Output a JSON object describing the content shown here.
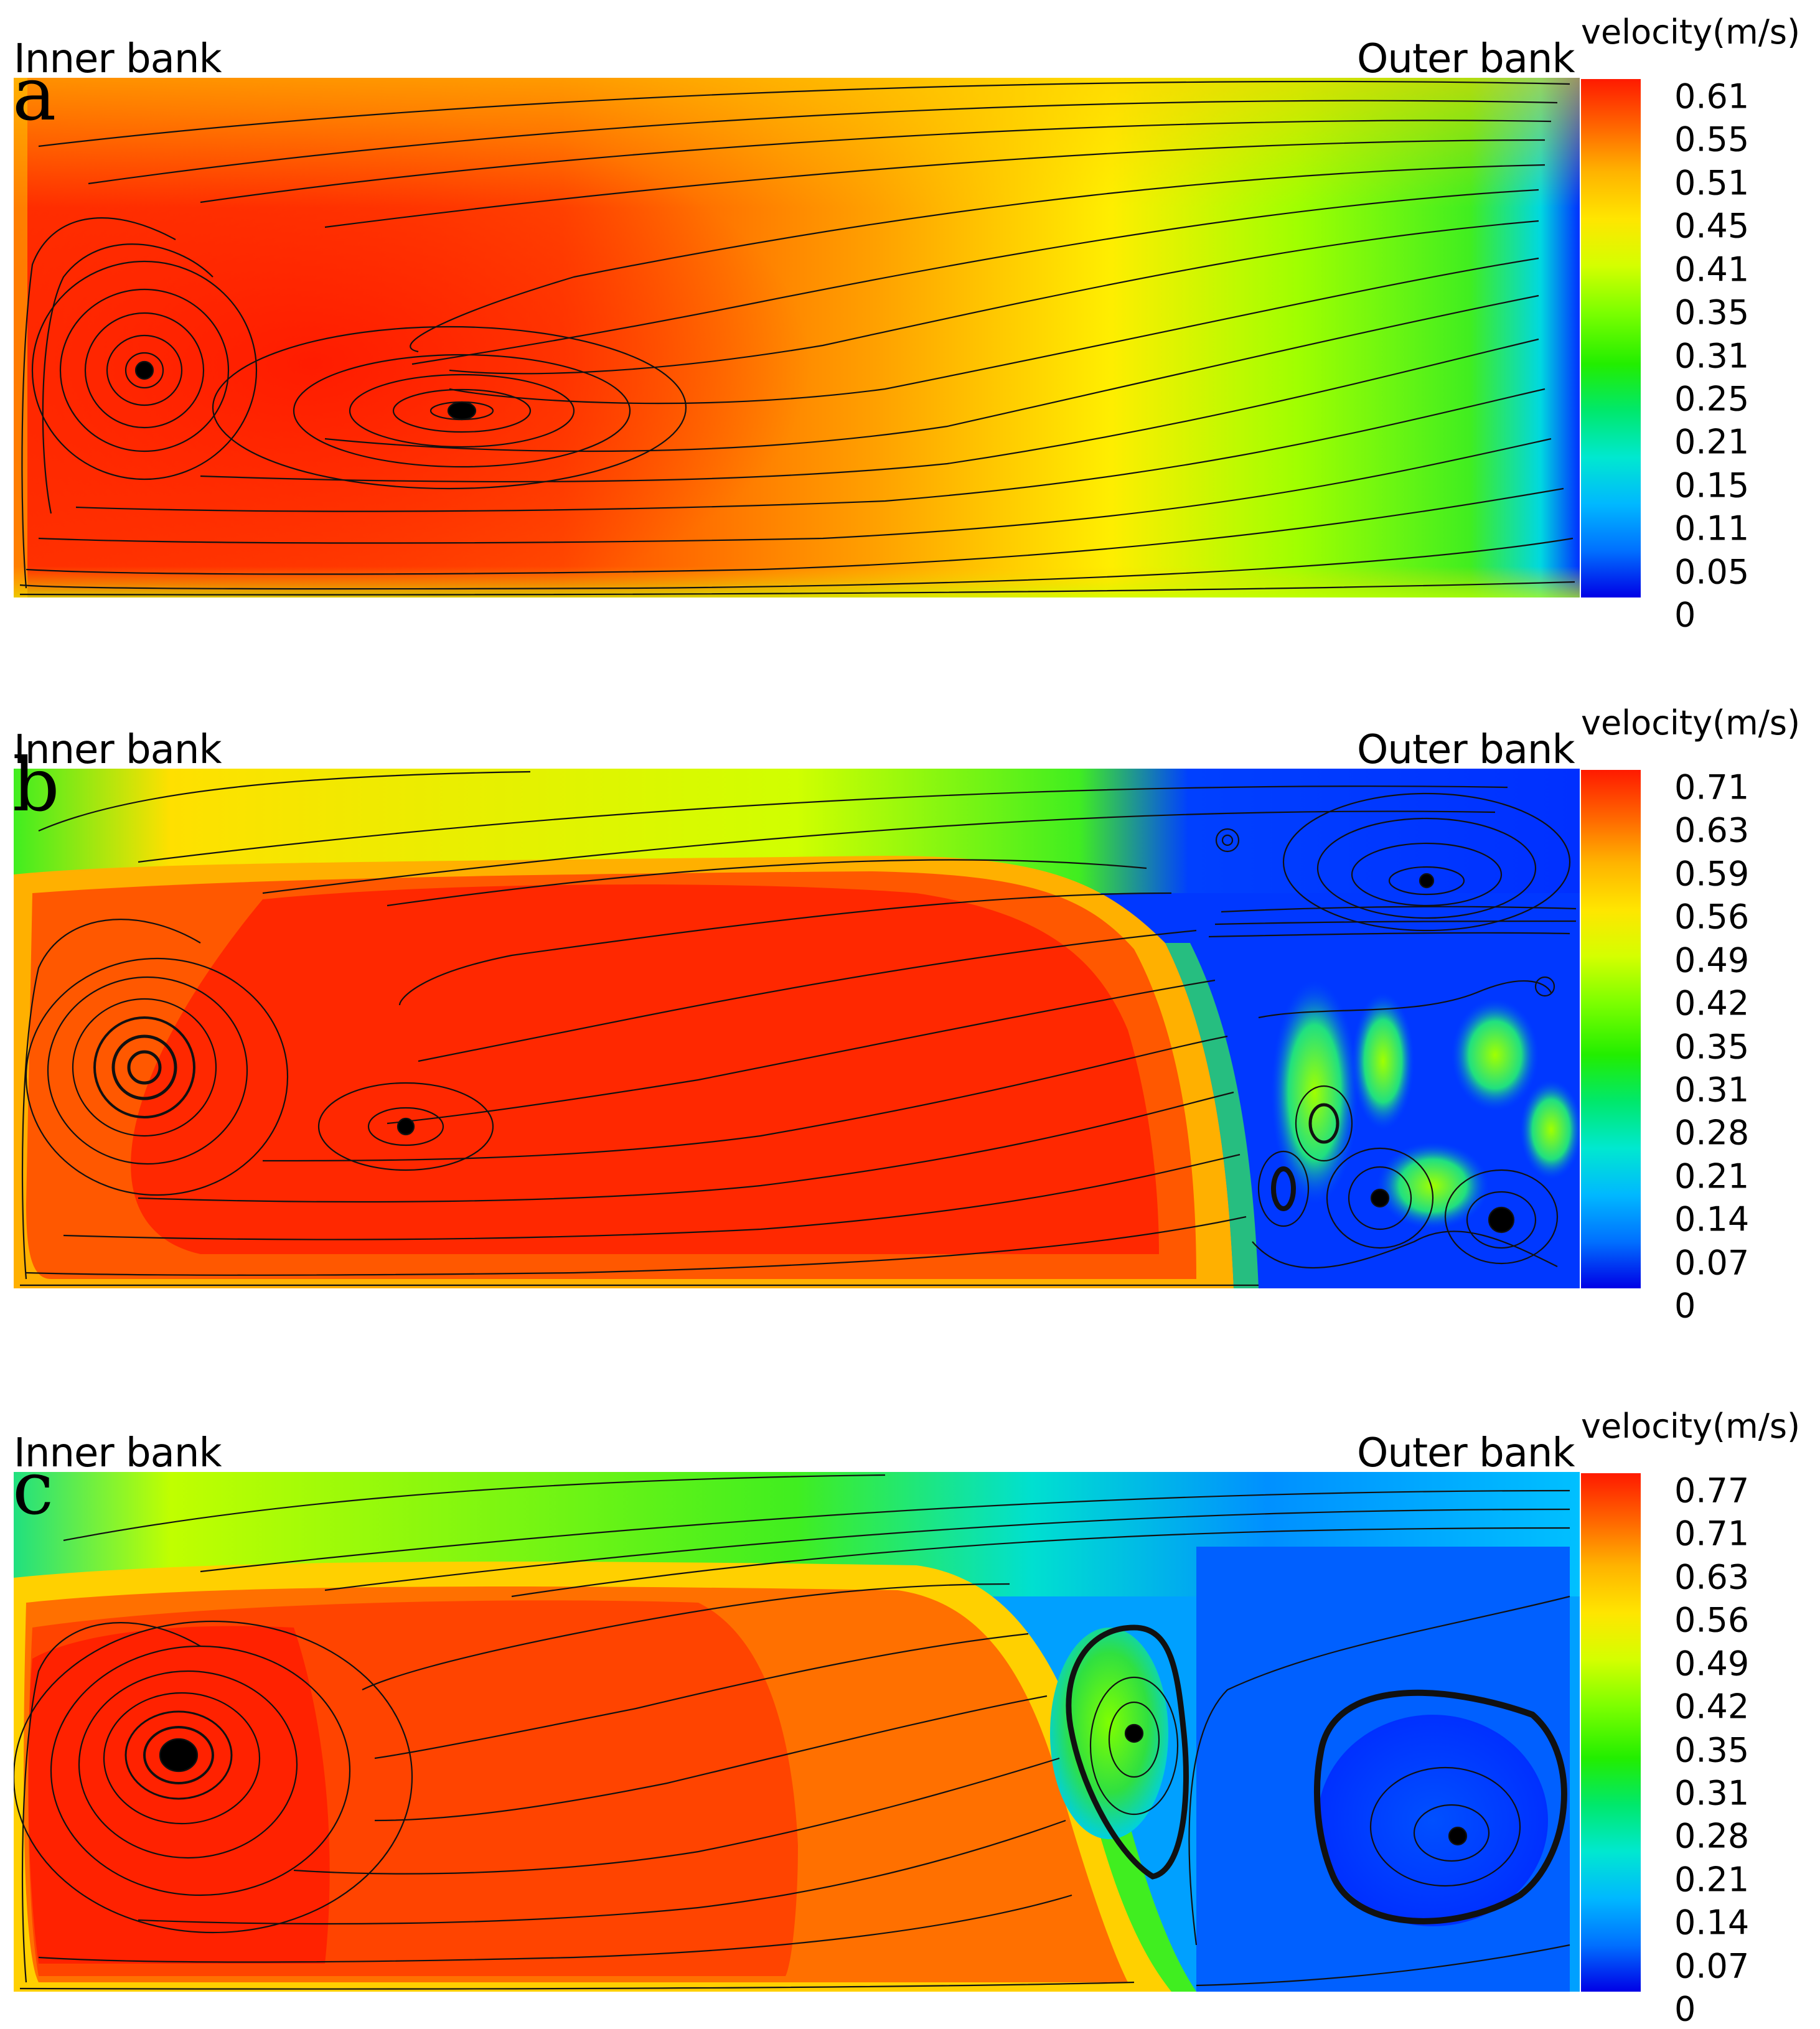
{
  "chart_data": [
    {
      "type": "heatmap",
      "panel": "a",
      "inner_label": "Inner bank",
      "outer_label": "Outer bank",
      "colorbar_title": "velocity(m/s)",
      "colorbar_ticks": [
        "0.61",
        "0.55",
        "0.51",
        "0.45",
        "0.41",
        "0.35",
        "0.31",
        "0.25",
        "0.21",
        "0.15",
        "0.11",
        "0.05",
        "0"
      ],
      "colorscale": [
        "#ff1a00",
        "#ff6400",
        "#ffb400",
        "#ffe600",
        "#d4ff00",
        "#7cff00",
        "#22ee00",
        "#00e86c",
        "#00e8d0",
        "#00b8ff",
        "#0070ff",
        "#0030ff",
        "#0000e6"
      ],
      "vortex_centers": [
        [
          0.085,
          0.57
        ],
        [
          0.29,
          0.66
        ]
      ]
    },
    {
      "type": "heatmap",
      "panel": "b",
      "inner_label": "Inner bank",
      "outer_label": "Outer bank",
      "colorbar_title": "velocity(m/s)",
      "colorbar_ticks": [
        "0.71",
        "0.63",
        "0.59",
        "0.56",
        "0.49",
        "0.42",
        "0.35",
        "0.31",
        "0.28",
        "0.21",
        "0.14",
        "0.07",
        "0"
      ],
      "colorscale": [
        "#ff1a00",
        "#ff6400",
        "#ffb400",
        "#ffe600",
        "#d4ff00",
        "#7cff00",
        "#22ee00",
        "#00e86c",
        "#00e8d0",
        "#00b8ff",
        "#0070ff",
        "#0030ff",
        "#0000e6"
      ],
      "vortex_centers": [
        [
          0.085,
          0.58
        ],
        [
          0.25,
          0.68
        ],
        [
          0.905,
          0.22
        ],
        [
          0.845,
          0.68
        ],
        [
          0.88,
          0.82
        ],
        [
          0.82,
          0.81
        ],
        [
          0.95,
          0.87
        ]
      ]
    },
    {
      "type": "heatmap",
      "panel": "c",
      "inner_label": "Inner bank",
      "outer_label": "Outer bank",
      "colorbar_title": "velocity(m/s)",
      "colorbar_ticks": [
        "0.77",
        "0.71",
        "0.63",
        "0.56",
        "0.49",
        "0.42",
        "0.35",
        "0.31",
        "0.28",
        "0.21",
        "0.14",
        "0.07",
        "0"
      ],
      "colorscale": [
        "#ff1a00",
        "#ff6400",
        "#ffb400",
        "#ffe600",
        "#d4ff00",
        "#7cff00",
        "#22ee00",
        "#00e86c",
        "#00e8d0",
        "#00b8ff",
        "#0070ff",
        "#0030ff",
        "#0000e6"
      ],
      "vortex_centers": [
        [
          0.105,
          0.55
        ],
        [
          0.715,
          0.5
        ],
        [
          0.93,
          0.66
        ]
      ]
    }
  ],
  "labels": {
    "a": "a",
    "b": "b",
    "c": "c"
  }
}
